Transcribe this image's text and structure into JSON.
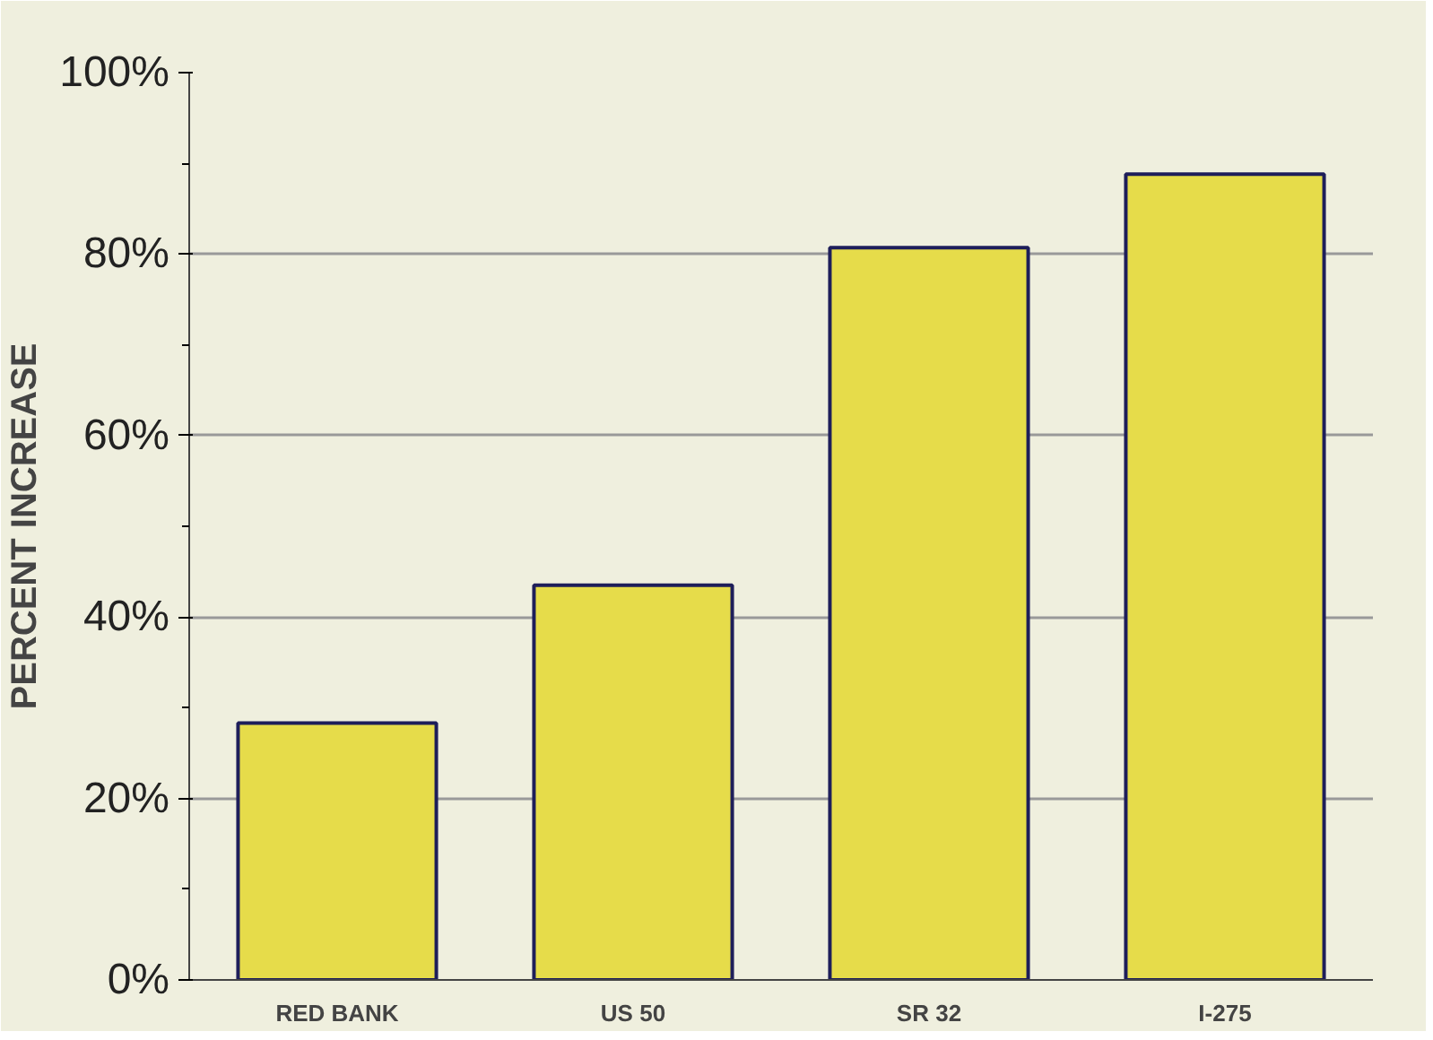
{
  "chart_data": {
    "type": "bar",
    "ylabel": "PERCENT INCREASE",
    "categories": [
      "RED BANK",
      "US 50",
      "SR 32",
      "I-275"
    ],
    "values": [
      28.3,
      43.5,
      80.7,
      88.8
    ],
    "color": "#e6dc4a",
    "ylim": [
      0,
      100
    ],
    "yticks": [
      {
        "value": 0,
        "label": "0%"
      },
      {
        "value": 20,
        "label": "20%"
      },
      {
        "value": 40,
        "label": "40%"
      },
      {
        "value": 60,
        "label": "60%"
      },
      {
        "value": 80,
        "label": "80%"
      },
      {
        "value": 100,
        "label": "100%"
      }
    ],
    "grid": "y"
  }
}
